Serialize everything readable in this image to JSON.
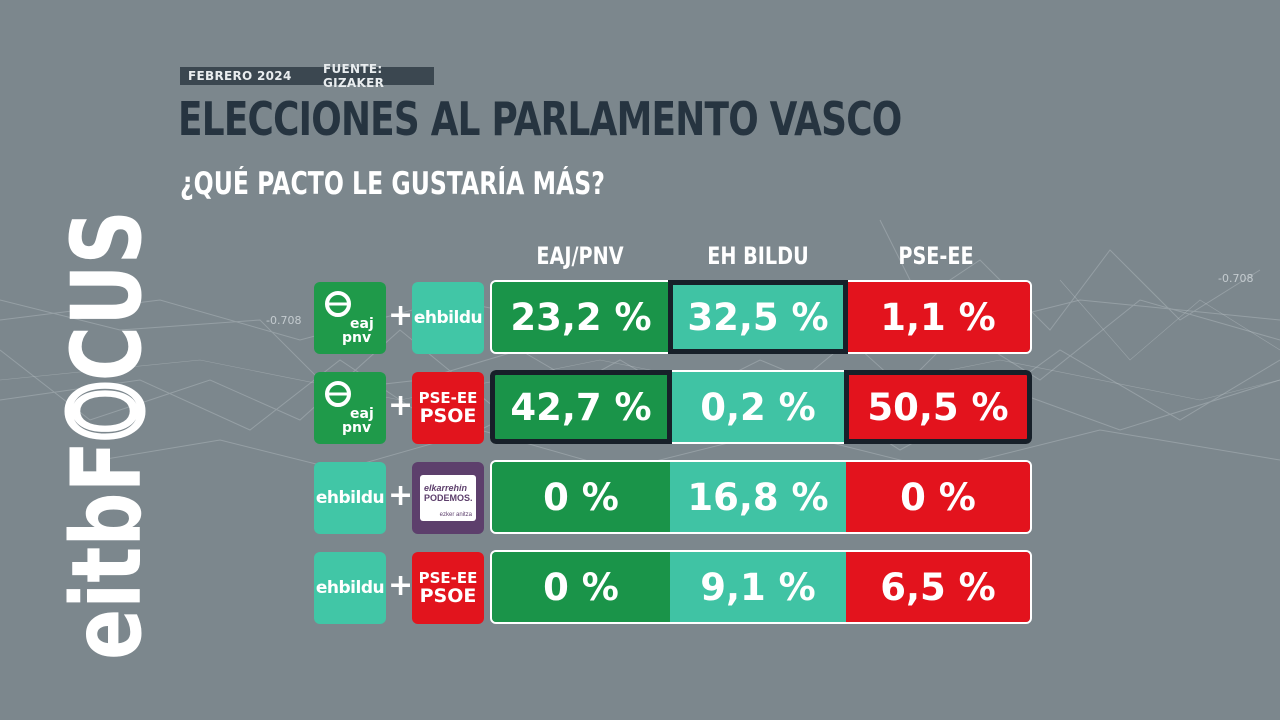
{
  "header": {
    "date": "FEBRERO 2024",
    "source": "FUENTE: GIZAKER",
    "title": "ELECCIONES AL PARLAMENTO VASCO",
    "subtitle": "¿QUÉ PACTO LE GUSTARÍA MÁS?"
  },
  "brand": "eitbFOCUS",
  "background_labels": [
    "-0.708",
    "-0.708"
  ],
  "colors": {
    "background": "#7c878d",
    "eaj_pnv": "#1a9449",
    "eh_bildu": "#40c3a4",
    "pse_ee": "#e3131d",
    "podemos": "#5d3f6c",
    "highlight_border": "#172029"
  },
  "chart_data": {
    "type": "table",
    "title": "ELECCIONES AL PARLAMENTO VASCO",
    "subtitle": "¿QUÉ PACTO LE GUSTARÍA MÁS?",
    "columns": [
      "EAJ/PNV",
      "EH BILDU",
      "PSE-EE"
    ],
    "rows": [
      {
        "pact": [
          "EAJ PNV",
          "EH Bildu"
        ],
        "logos": [
          {
            "icon": "eaj-pnv-logo",
            "line1": "eaj",
            "line2": "pnv"
          },
          {
            "icon": "ehbildu-logo",
            "text": "ehbildu"
          }
        ],
        "values": [
          23.2,
          32.5,
          1.1
        ],
        "labels": [
          "23,2 %",
          "32,5 %",
          "1,1 %"
        ],
        "highlight": [
          false,
          true,
          false
        ]
      },
      {
        "pact": [
          "EAJ PNV",
          "PSE-EE PSOE"
        ],
        "logos": [
          {
            "icon": "eaj-pnv-logo",
            "line1": "eaj",
            "line2": "pnv"
          },
          {
            "icon": "pse-psoe-logo",
            "line1": "PSE-EE",
            "line2": "PSOE"
          }
        ],
        "values": [
          42.7,
          0.2,
          50.5
        ],
        "labels": [
          "42,7 %",
          "0,2 %",
          "50,5 %"
        ],
        "highlight": [
          true,
          false,
          true
        ]
      },
      {
        "pact": [
          "EH Bildu",
          "Elkarrekin Podemos"
        ],
        "logos": [
          {
            "icon": "ehbildu-logo",
            "text": "ehbildu"
          },
          {
            "icon": "elkarrekin-podemos-logo",
            "line1": "elkarrehin",
            "line2": "PODEMOS.",
            "line3": "ezker anitza"
          }
        ],
        "values": [
          0,
          16.8,
          0
        ],
        "labels": [
          "0 %",
          "16,8 %",
          "0 %"
        ],
        "highlight": [
          false,
          false,
          false
        ]
      },
      {
        "pact": [
          "EH Bildu",
          "PSE-EE PSOE"
        ],
        "logos": [
          {
            "icon": "ehbildu-logo",
            "text": "ehbildu"
          },
          {
            "icon": "pse-psoe-logo",
            "line1": "PSE-EE",
            "line2": "PSOE"
          }
        ],
        "values": [
          0,
          9.1,
          6.5
        ],
        "labels": [
          "0 %",
          "9,1 %",
          "6,5 %"
        ],
        "highlight": [
          false,
          false,
          false
        ]
      }
    ]
  }
}
